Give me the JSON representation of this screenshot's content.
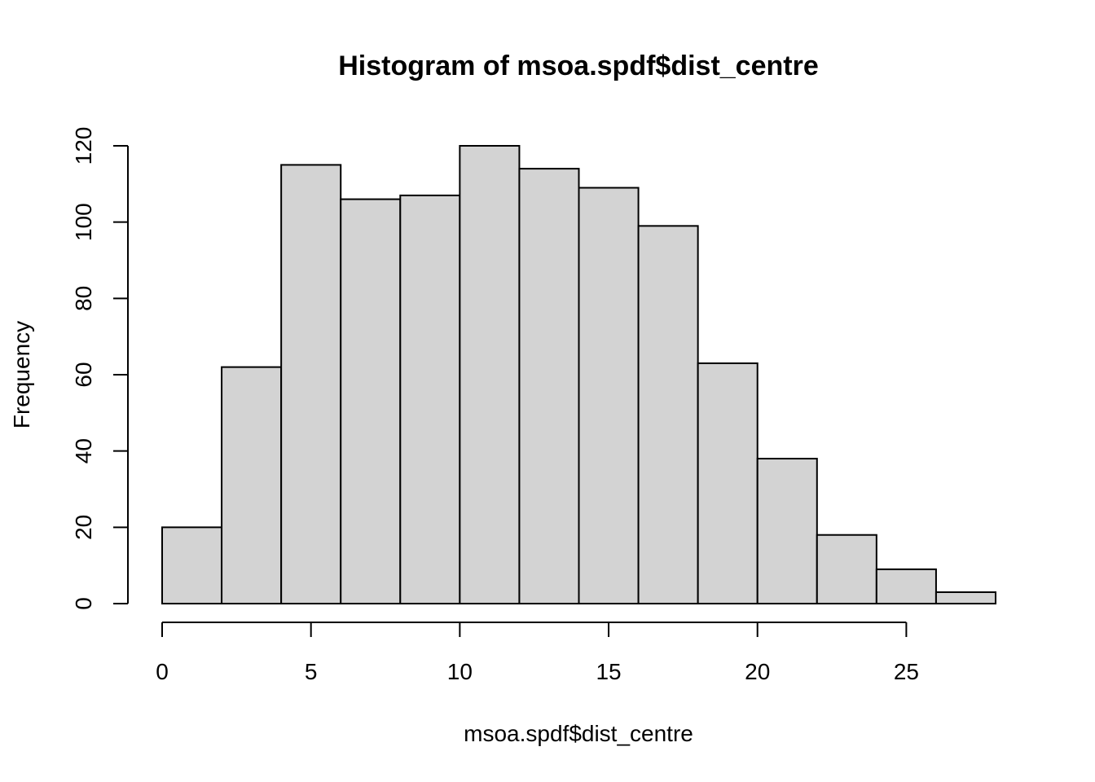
{
  "chart_data": {
    "type": "bar",
    "title": "Histogram of msoa.spdf$dist_centre",
    "xlabel": "msoa.spdf$dist_centre",
    "ylabel": "Frequency",
    "bin_edges": [
      0,
      2,
      4,
      6,
      8,
      10,
      12,
      14,
      16,
      18,
      20,
      22,
      24,
      26,
      28
    ],
    "values": [
      20,
      62,
      115,
      106,
      107,
      120,
      114,
      109,
      99,
      63,
      38,
      18,
      9,
      3
    ],
    "xlim": [
      0,
      28
    ],
    "ylim": [
      0,
      120
    ],
    "x_ticks": [
      0,
      5,
      10,
      15,
      20,
      25
    ],
    "y_ticks": [
      0,
      20,
      40,
      60,
      80,
      100,
      120
    ],
    "grid": false,
    "bar_color": "#d3d3d3",
    "edge_color": "#000000"
  }
}
